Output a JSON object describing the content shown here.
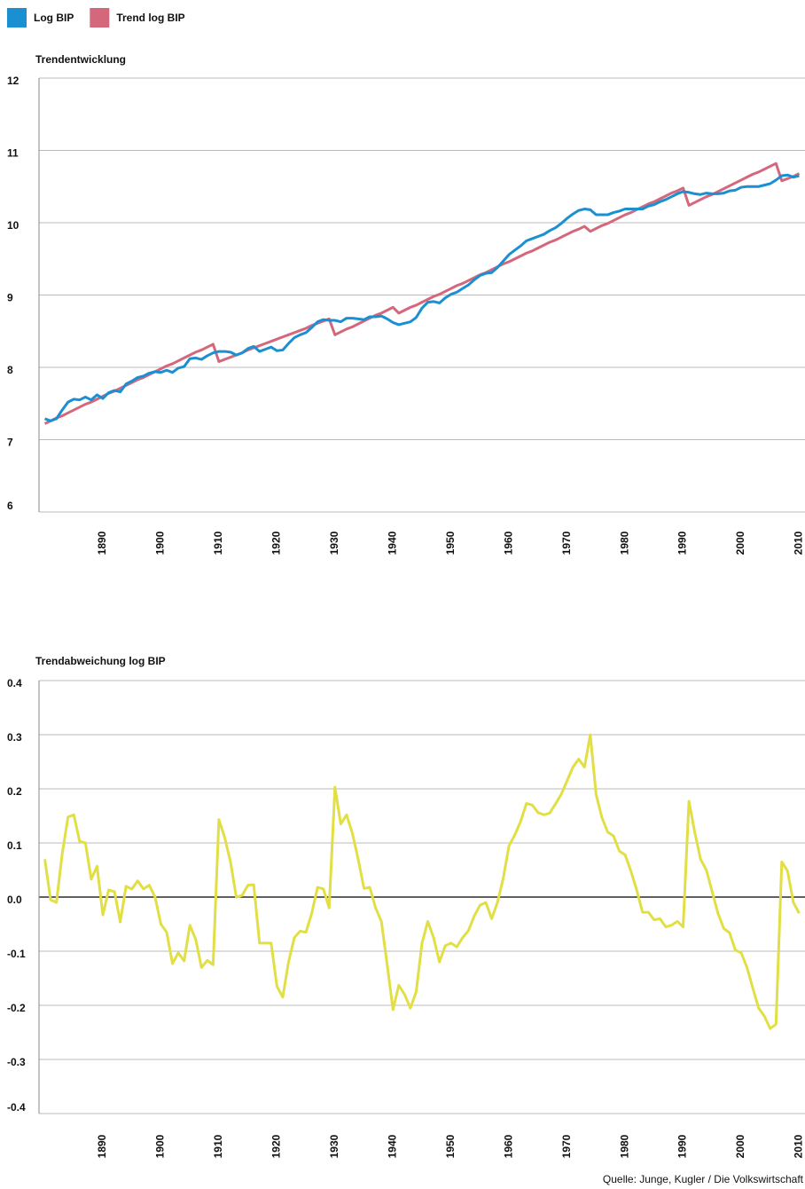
{
  "chart_data": [
    {
      "type": "line",
      "title": "Trendentwicklung",
      "legend": "top-left",
      "grid": true,
      "x": [
        1880,
        1881,
        1882,
        1883,
        1884,
        1885,
        1886,
        1887,
        1888,
        1889,
        1890,
        1891,
        1892,
        1893,
        1894,
        1895,
        1896,
        1897,
        1898,
        1899,
        1900,
        1901,
        1902,
        1903,
        1904,
        1905,
        1906,
        1907,
        1908,
        1909,
        1910,
        1911,
        1912,
        1913,
        1914,
        1915,
        1916,
        1917,
        1918,
        1919,
        1920,
        1921,
        1922,
        1923,
        1924,
        1925,
        1926,
        1927,
        1928,
        1929,
        1930,
        1931,
        1932,
        1933,
        1934,
        1935,
        1936,
        1937,
        1938,
        1939,
        1940,
        1941,
        1942,
        1943,
        1944,
        1945,
        1946,
        1947,
        1948,
        1949,
        1950,
        1951,
        1952,
        1953,
        1954,
        1955,
        1956,
        1957,
        1958,
        1959,
        1960,
        1961,
        1962,
        1963,
        1964,
        1965,
        1966,
        1967,
        1968,
        1969,
        1970,
        1971,
        1972,
        1973,
        1974,
        1975,
        1976,
        1977,
        1978,
        1979,
        1980,
        1981,
        1982,
        1983,
        1984,
        1985,
        1986,
        1987,
        1988,
        1989,
        1990,
        1991,
        1992,
        1993,
        1994,
        1995,
        1996,
        1997,
        1998,
        1999,
        2000,
        2001,
        2002,
        2003,
        2004,
        2005,
        2006,
        2007,
        2008,
        2009,
        2010
      ],
      "xlim": [
        1879,
        2011
      ],
      "xticks": [
        1890,
        1900,
        1910,
        1920,
        1930,
        1940,
        1950,
        1960,
        1970,
        1980,
        1990,
        2000,
        2010
      ],
      "ylim": [
        6,
        12
      ],
      "yticks": [
        6,
        7,
        8,
        9,
        10,
        11,
        12
      ],
      "series": [
        {
          "name": "Trend log BIP",
          "color": "#d4677c",
          "values": [
            7.22,
            7.26,
            7.3,
            7.33,
            7.37,
            7.41,
            7.45,
            7.49,
            7.52,
            7.56,
            7.6,
            7.64,
            7.67,
            7.71,
            7.75,
            7.79,
            7.83,
            7.86,
            7.9,
            7.94,
            7.98,
            8.02,
            8.05,
            8.09,
            8.13,
            8.17,
            8.21,
            8.24,
            8.28,
            8.32,
            8.08,
            8.11,
            8.14,
            8.17,
            8.2,
            8.24,
            8.27,
            8.3,
            8.33,
            8.36,
            8.39,
            8.42,
            8.45,
            8.48,
            8.51,
            8.54,
            8.58,
            8.61,
            8.64,
            8.67,
            8.45,
            8.49,
            8.53,
            8.56,
            8.6,
            8.64,
            8.68,
            8.72,
            8.75,
            8.79,
            8.83,
            8.75,
            8.79,
            8.83,
            8.86,
            8.9,
            8.94,
            8.98,
            9.01,
            9.05,
            9.09,
            9.13,
            9.16,
            9.2,
            9.24,
            9.28,
            9.31,
            9.35,
            9.39,
            9.43,
            9.46,
            9.5,
            9.54,
            9.58,
            9.61,
            9.65,
            9.69,
            9.73,
            9.76,
            9.8,
            9.84,
            9.88,
            9.91,
            9.95,
            9.88,
            9.92,
            9.96,
            9.99,
            10.03,
            10.07,
            10.11,
            10.14,
            10.18,
            10.22,
            10.26,
            10.29,
            10.33,
            10.37,
            10.41,
            10.44,
            10.48,
            10.24,
            10.28,
            10.32,
            10.36,
            10.39,
            10.43,
            10.47,
            10.51,
            10.55,
            10.59,
            10.63,
            10.67,
            10.7,
            10.74,
            10.78,
            10.82,
            10.58,
            10.61,
            10.64,
            10.68
          ]
        },
        {
          "name": "Log BIP",
          "color": "#1a90d2",
          "values": [
            7.29,
            7.26,
            7.29,
            7.41,
            7.52,
            7.56,
            7.55,
            7.59,
            7.55,
            7.62,
            7.57,
            7.65,
            7.68,
            7.66,
            7.77,
            7.81,
            7.86,
            7.88,
            7.92,
            7.94,
            7.93,
            7.96,
            7.93,
            7.99,
            8.01,
            8.12,
            8.13,
            8.11,
            8.16,
            8.2,
            8.22,
            8.22,
            8.21,
            8.17,
            8.2,
            8.26,
            8.29,
            8.22,
            8.25,
            8.28,
            8.23,
            8.24,
            8.33,
            8.41,
            8.45,
            8.48,
            8.55,
            8.63,
            8.66,
            8.65,
            8.65,
            8.63,
            8.68,
            8.68,
            8.67,
            8.66,
            8.7,
            8.7,
            8.71,
            8.67,
            8.62,
            8.59,
            8.61,
            8.63,
            8.69,
            8.82,
            8.9,
            8.91,
            8.89,
            8.96,
            9.01,
            9.04,
            9.09,
            9.14,
            9.21,
            9.27,
            9.3,
            9.31,
            9.38,
            9.47,
            9.56,
            9.62,
            9.68,
            9.75,
            9.78,
            9.81,
            9.84,
            9.89,
            9.93,
            9.99,
            10.06,
            10.12,
            10.17,
            10.19,
            10.18,
            10.11,
            10.11,
            10.11,
            10.14,
            10.16,
            10.19,
            10.19,
            10.19,
            10.19,
            10.23,
            10.25,
            10.29,
            10.32,
            10.36,
            10.4,
            10.43,
            10.42,
            10.4,
            10.39,
            10.41,
            10.4,
            10.4,
            10.41,
            10.44,
            10.45,
            10.49,
            10.5,
            10.5,
            10.5,
            10.52,
            10.54,
            10.59,
            10.65,
            10.66,
            10.63,
            10.65
          ]
        }
      ]
    },
    {
      "type": "line",
      "title": "Trendabweichung log BIP",
      "grid": true,
      "color": "#e2df45",
      "x": [
        1880,
        1881,
        1882,
        1883,
        1884,
        1885,
        1886,
        1887,
        1888,
        1889,
        1890,
        1891,
        1892,
        1893,
        1894,
        1895,
        1896,
        1897,
        1898,
        1899,
        1900,
        1901,
        1902,
        1903,
        1904,
        1905,
        1906,
        1907,
        1908,
        1909,
        1910,
        1911,
        1912,
        1913,
        1914,
        1915,
        1916,
        1917,
        1918,
        1919,
        1920,
        1921,
        1922,
        1923,
        1924,
        1925,
        1926,
        1927,
        1928,
        1929,
        1930,
        1931,
        1932,
        1933,
        1934,
        1935,
        1936,
        1937,
        1938,
        1939,
        1940,
        1941,
        1942,
        1943,
        1944,
        1945,
        1946,
        1947,
        1948,
        1949,
        1950,
        1951,
        1952,
        1953,
        1954,
        1955,
        1956,
        1957,
        1958,
        1959,
        1960,
        1961,
        1962,
        1963,
        1964,
        1965,
        1966,
        1967,
        1968,
        1969,
        1970,
        1971,
        1972,
        1973,
        1974,
        1975,
        1976,
        1977,
        1978,
        1979,
        1980,
        1981,
        1982,
        1983,
        1984,
        1985,
        1986,
        1987,
        1988,
        1989,
        1990,
        1991,
        1992,
        1993,
        1994,
        1995,
        1996,
        1997,
        1998,
        1999,
        2000,
        2001,
        2002,
        2003,
        2004,
        2005,
        2006,
        2007,
        2008,
        2009,
        2010
      ],
      "xlim": [
        1879,
        2011
      ],
      "xticks": [
        1890,
        1900,
        1910,
        1920,
        1930,
        1940,
        1950,
        1960,
        1970,
        1980,
        1990,
        2000,
        2010
      ],
      "ylim": [
        -0.4,
        0.4
      ],
      "yticks": [
        -0.4,
        -0.3,
        -0.2,
        -0.1,
        {
          "value": 0,
          "label": "0.0"
        },
        0.1,
        0.2,
        0.3,
        0.4
      ],
      "values": [
        0.07,
        -0.005,
        -0.01,
        0.08,
        0.148,
        0.152,
        0.103,
        0.1,
        0.033,
        0.057,
        -0.033,
        0.013,
        0.01,
        -0.046,
        0.02,
        0.015,
        0.03,
        0.015,
        0.022,
        0.0,
        -0.05,
        -0.065,
        -0.123,
        -0.103,
        -0.118,
        -0.052,
        -0.078,
        -0.13,
        -0.117,
        -0.125,
        0.143,
        0.11,
        0.065,
        0.0,
        0.003,
        0.022,
        0.023,
        -0.085,
        -0.085,
        -0.085,
        -0.165,
        -0.185,
        -0.12,
        -0.075,
        -0.063,
        -0.065,
        -0.03,
        0.018,
        0.015,
        -0.02,
        0.203,
        0.135,
        0.152,
        0.118,
        0.07,
        0.016,
        0.018,
        -0.02,
        -0.045,
        -0.125,
        -0.208,
        -0.163,
        -0.18,
        -0.205,
        -0.175,
        -0.085,
        -0.045,
        -0.075,
        -0.12,
        -0.09,
        -0.085,
        -0.092,
        -0.075,
        -0.062,
        -0.035,
        -0.015,
        -0.01,
        -0.04,
        -0.01,
        0.035,
        0.095,
        0.115,
        0.14,
        0.173,
        0.17,
        0.156,
        0.152,
        0.155,
        0.172,
        0.19,
        0.215,
        0.24,
        0.255,
        0.24,
        0.3,
        0.19,
        0.147,
        0.12,
        0.113,
        0.085,
        0.078,
        0.048,
        0.013,
        -0.028,
        -0.028,
        -0.042,
        -0.04,
        -0.055,
        -0.052,
        -0.045,
        -0.055,
        0.177,
        0.12,
        0.07,
        0.05,
        0.01,
        -0.03,
        -0.058,
        -0.066,
        -0.098,
        -0.103,
        -0.13,
        -0.168,
        -0.205,
        -0.22,
        -0.243,
        -0.235,
        0.065,
        0.048,
        -0.01,
        -0.03
      ]
    }
  ],
  "source": "Quelle: Junge, Kugler / Die Volkswirtschaft"
}
